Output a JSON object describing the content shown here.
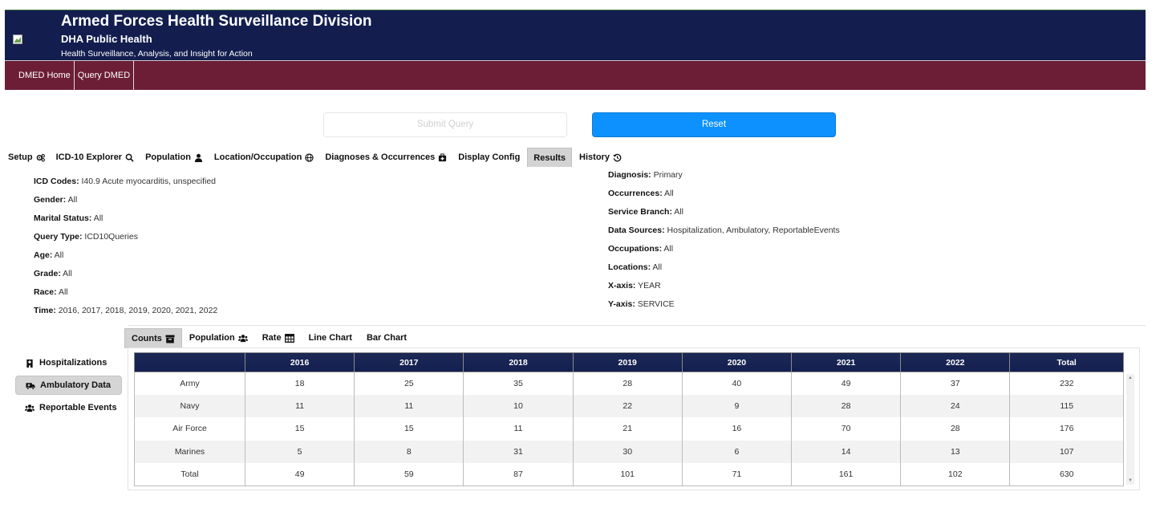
{
  "header": {
    "title": "Armed Forces Health Surveillance Division",
    "subtitle": "DHA Public Health",
    "tagline": "Health Surveillance, Analysis, and Insight for Action"
  },
  "nav": {
    "items": [
      "DMED Home",
      "Query DMED"
    ]
  },
  "buttons": {
    "submit": "Submit Query",
    "reset": "Reset"
  },
  "tabs": [
    {
      "label": "Setup",
      "icon": "cogs-icon"
    },
    {
      "label": "ICD-10 Explorer",
      "icon": "search-icon"
    },
    {
      "label": "Population",
      "icon": "user-icon"
    },
    {
      "label": "Location/Occupation",
      "icon": "globe-icon"
    },
    {
      "label": "Diagnoses & Occurrences",
      "icon": "medkit-icon"
    },
    {
      "label": "Display Config",
      "icon": ""
    },
    {
      "label": "Results",
      "icon": "",
      "active": true
    },
    {
      "label": "History",
      "icon": "history-icon"
    }
  ],
  "summary_left": [
    {
      "label": "ICD Codes:",
      "value": " I40.9 Acute myocarditis, unspecified"
    },
    {
      "label": "Gender:",
      "value": " All"
    },
    {
      "label": "Marital Status:",
      "value": " All"
    },
    {
      "label": "Query Type:",
      "value": " ICD10Queries"
    },
    {
      "label": "Age:",
      "value": " All"
    },
    {
      "label": "Grade:",
      "value": " All"
    },
    {
      "label": "Race:",
      "value": " All"
    },
    {
      "label": "Time:",
      "value": " 2016, 2017, 2018, 2019, 2020, 2021, 2022"
    }
  ],
  "summary_right": [
    {
      "label": "Diagnosis:",
      "value": " Primary"
    },
    {
      "label": "Occurrences:",
      "value": " All"
    },
    {
      "label": "Service Branch:",
      "value": " All"
    },
    {
      "label": "Data Sources:",
      "value": " Hospitalization, Ambulatory, ReportableEvents"
    },
    {
      "label": "Occupations:",
      "value": " All"
    },
    {
      "label": "Locations:",
      "value": " All"
    },
    {
      "label": "X-axis:",
      "value": " YEAR"
    },
    {
      "label": "Y-axis:",
      "value": " SERVICE"
    }
  ],
  "side_menu": [
    {
      "label": "Hospitalizations",
      "icon": "hospital-icon"
    },
    {
      "label": "Ambulatory Data",
      "icon": "ambulance-icon",
      "active": true
    },
    {
      "label": "Reportable Events",
      "icon": "users-icon"
    }
  ],
  "subtabs": [
    {
      "label": "Counts",
      "icon": "archive-icon",
      "active": true
    },
    {
      "label": "Population",
      "icon": "users-icon"
    },
    {
      "label": "Rate",
      "icon": "table-icon"
    },
    {
      "label": "Line Chart",
      "icon": ""
    },
    {
      "label": "Bar Chart",
      "icon": ""
    }
  ],
  "table": {
    "headers": [
      "",
      "2016",
      "2017",
      "2018",
      "2019",
      "2020",
      "2021",
      "2022",
      "Total"
    ],
    "rows": [
      [
        "Army",
        "18",
        "25",
        "35",
        "28",
        "40",
        "49",
        "37",
        "232"
      ],
      [
        "Navy",
        "11",
        "11",
        "10",
        "22",
        "9",
        "28",
        "24",
        "115"
      ],
      [
        "Air Force",
        "15",
        "15",
        "11",
        "21",
        "16",
        "70",
        "28",
        "176"
      ],
      [
        "Marines",
        "5",
        "8",
        "31",
        "30",
        "6",
        "14",
        "13",
        "107"
      ],
      [
        "Total",
        "49",
        "59",
        "87",
        "101",
        "71",
        "161",
        "102",
        "630"
      ]
    ]
  },
  "colors": {
    "header_bg": "#131e4f",
    "nav_bg": "#6c1e36",
    "reset_bg": "#0d91fe"
  }
}
